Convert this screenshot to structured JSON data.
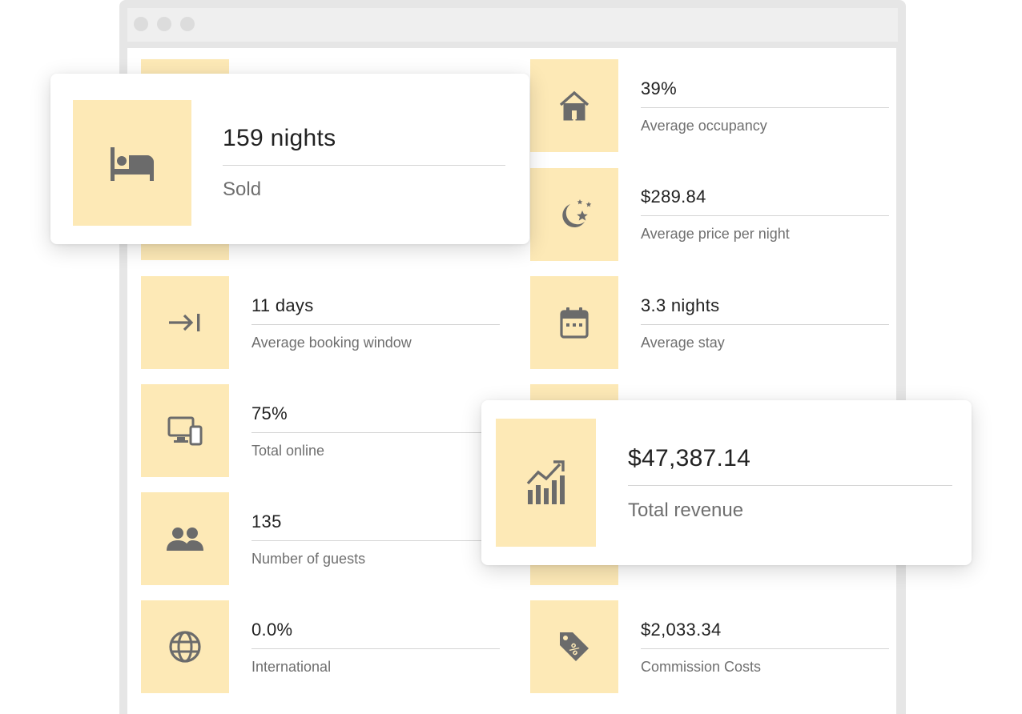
{
  "colors": {
    "tile_bg": "#fde9b6",
    "icon": "#6b6b6b",
    "value_text": "#222222",
    "label_text": "#6f6f6f"
  },
  "stats": [
    {
      "id": "occupancy",
      "value": "39%",
      "label": "Average occupancy",
      "icon": "house-icon"
    },
    {
      "id": "price",
      "value": "$289.84",
      "label": "Average price per night",
      "icon": "moon-stars-icon"
    },
    {
      "id": "booking_window",
      "value": "11 days",
      "label": "Average booking window",
      "icon": "arrow-to-line-icon"
    },
    {
      "id": "stay",
      "value": "3.3 nights",
      "label": "Average stay",
      "icon": "calendar-icon"
    },
    {
      "id": "online",
      "value": "75%",
      "label": "Total online",
      "icon": "devices-icon"
    },
    {
      "id": "guests",
      "value": "135",
      "label": "Number of guests",
      "icon": "people-icon"
    },
    {
      "id": "international",
      "value": "0.0%",
      "label": "International",
      "icon": "globe-icon"
    },
    {
      "id": "commission",
      "value": "$2,033.34",
      "label": "Commission Costs",
      "icon": "price-tag-percent-icon"
    }
  ],
  "cards": {
    "nights": {
      "value": "159 nights",
      "label": "Sold",
      "icon": "bed-icon"
    },
    "revenue": {
      "value": "$47,387.14",
      "label": "Total revenue",
      "icon": "bar-chart-trend-icon"
    }
  }
}
